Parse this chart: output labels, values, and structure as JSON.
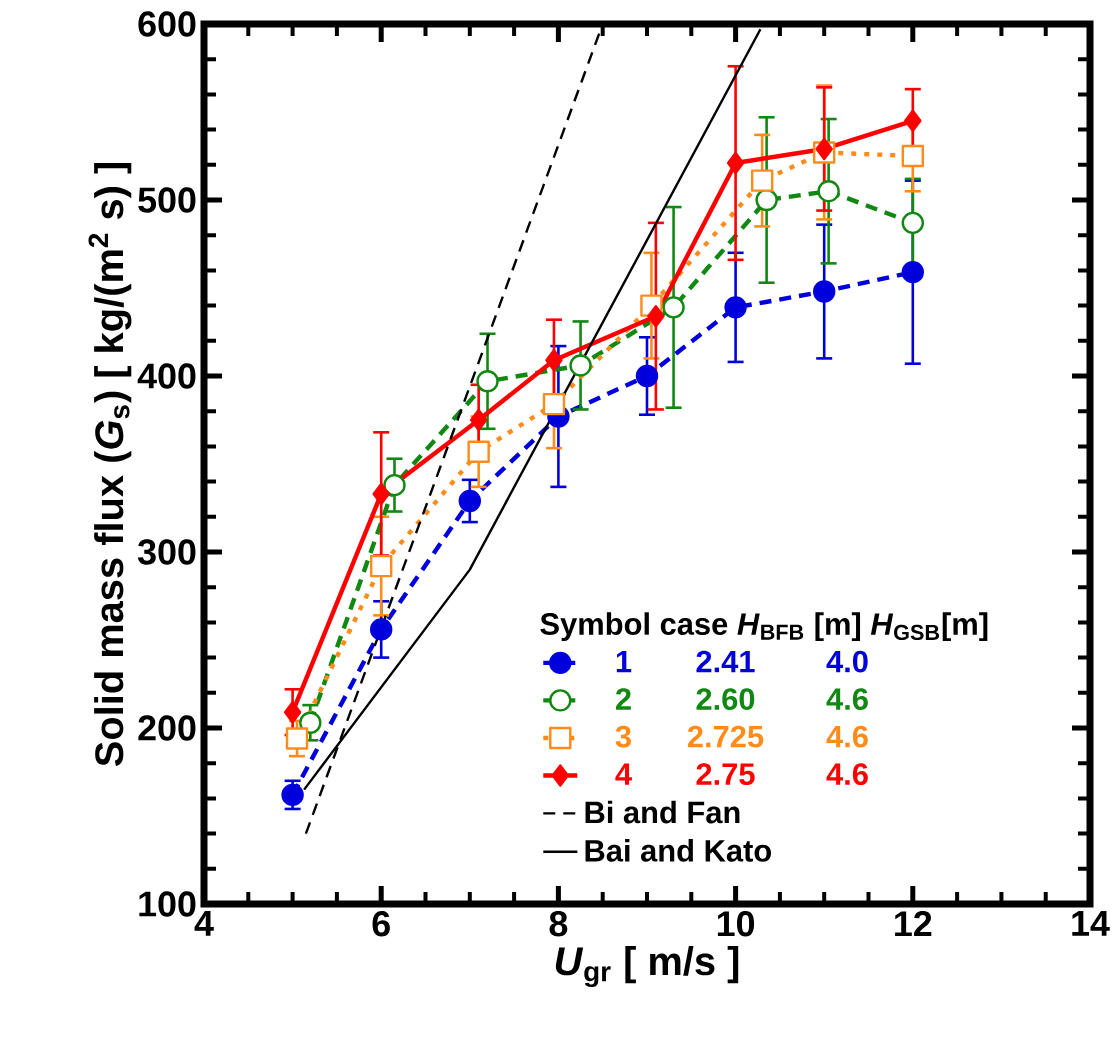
{
  "chart_data": {
    "type": "line",
    "xlabel": "*U*$_{gr}$ [ m/s ]",
    "ylabel": "Solid mass flux (*G*$_{s}$) [ kg/(m$^{2}$ s) ]",
    "legend_title": "Symbol case *H*$_{BFB}$ [m] *H*$_{GSB}$[m]",
    "annotations": [
      "2.41",
      "4.0",
      "2.60",
      "4.6",
      "2.725",
      "4.6",
      "2.75",
      "4.6"
    ],
    "xlim": [
      4,
      14
    ],
    "xticks": [
      4,
      6,
      8,
      10,
      12,
      14
    ],
    "ylim": [
      100,
      600
    ],
    "yticks": [
      100,
      200,
      300,
      400,
      500,
      600
    ],
    "grid": false,
    "legend": "bottom right",
    "series": [
      {
        "name": "1",
        "color": "#0000dd",
        "marker": "circle",
        "line_style": "dashed",
        "x": [
          5,
          6,
          7,
          8,
          9,
          10,
          11,
          12
        ],
        "values": [
          162,
          256,
          329,
          377,
          400,
          439,
          448,
          459
        ],
        "errors": [
          8,
          16,
          12,
          40,
          22,
          31,
          38,
          52
        ]
      },
      {
        "name": "2",
        "color": "#118811",
        "marker": "circle",
        "line_style": "dashed",
        "x": [
          5.2,
          6.15,
          7.2,
          8.25,
          9.3,
          10.35,
          11.05,
          12
        ],
        "values": [
          203,
          338,
          397,
          406,
          439,
          500,
          505,
          487
        ],
        "errors": [
          10,
          15,
          27,
          25,
          57,
          47,
          41,
          25
        ]
      },
      {
        "name": "3",
        "color": "#ff8c1a",
        "marker": "square",
        "line_style": "dotted",
        "x": [
          5.05,
          6,
          7.1,
          7.95,
          9.05,
          10.3,
          11,
          12
        ],
        "values": [
          194,
          292,
          357,
          384,
          440,
          511,
          527,
          525
        ],
        "errors": [
          10,
          28,
          20,
          25,
          30,
          26,
          38,
          20
        ]
      },
      {
        "name": "4",
        "color": "#ff0000",
        "marker": "diamond",
        "line_style": "solid",
        "x": [
          5,
          6,
          7.1,
          7.95,
          9.1,
          10,
          11,
          12
        ],
        "values": [
          209,
          333,
          375,
          409,
          434,
          521,
          529,
          545
        ],
        "errors": [
          13,
          35,
          20,
          23,
          53,
          55,
          35,
          18
        ]
      },
      {
        "name": "Bi and Fan",
        "color": "#000000",
        "marker": "none",
        "line_style": "dashed",
        "x": [
          5.15,
          8.5
        ],
        "values": [
          140,
          600
        ]
      },
      {
        "name": "Bai and Kato",
        "color": "#000000",
        "marker": "none",
        "line_style": "solid",
        "x": [
          5.13,
          7.0,
          10.28
        ],
        "values": [
          165,
          290,
          597
        ]
      }
    ]
  }
}
